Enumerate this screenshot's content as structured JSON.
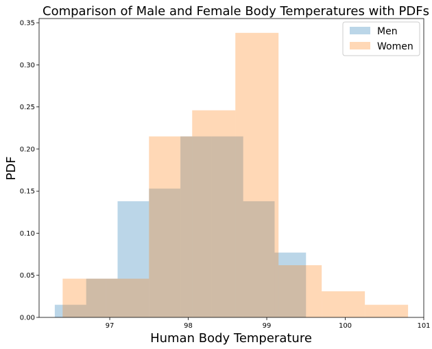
{
  "chart_data": {
    "type": "bar",
    "title": "Comparison of Male and Female Body Temperatures with PDFs",
    "xlabel": "Human Body Temperature",
    "ylabel": "PDF",
    "xlim": [
      96.1,
      101.0
    ],
    "ylim": [
      0,
      0.355
    ],
    "xticks": [
      "97",
      "98",
      "99",
      "100",
      "101"
    ],
    "yticks": [
      "0.00",
      "0.05",
      "0.10",
      "0.15",
      "0.20",
      "0.25",
      "0.30",
      "0.35"
    ],
    "legend_position": "top-right",
    "series": [
      {
        "name": "Men",
        "color": "#1f77b4",
        "opacity": 0.3,
        "bins": [
          {
            "x0": 96.3,
            "x1": 96.7,
            "value": 0.015
          },
          {
            "x0": 96.7,
            "x1": 97.1,
            "value": 0.046
          },
          {
            "x0": 97.1,
            "x1": 97.5,
            "value": 0.138
          },
          {
            "x0": 97.5,
            "x1": 97.9,
            "value": 0.153
          },
          {
            "x0": 97.9,
            "x1": 98.3,
            "value": 0.215
          },
          {
            "x0": 98.3,
            "x1": 98.7,
            "value": 0.215
          },
          {
            "x0": 98.7,
            "x1": 99.1,
            "value": 0.138
          },
          {
            "x0": 99.1,
            "x1": 99.5,
            "value": 0.077
          }
        ]
      },
      {
        "name": "Women",
        "color": "#ff7f0e",
        "opacity": 0.3,
        "bins": [
          {
            "x0": 96.4,
            "x1": 96.95,
            "value": 0.046
          },
          {
            "x0": 96.95,
            "x1": 97.5,
            "value": 0.046
          },
          {
            "x0": 97.5,
            "x1": 98.05,
            "value": 0.215
          },
          {
            "x0": 98.05,
            "x1": 98.6,
            "value": 0.246
          },
          {
            "x0": 98.6,
            "x1": 99.15,
            "value": 0.338
          },
          {
            "x0": 99.15,
            "x1": 99.7,
            "value": 0.062
          },
          {
            "x0": 99.7,
            "x1": 100.25,
            "value": 0.031
          },
          {
            "x0": 100.25,
            "x1": 100.8,
            "value": 0.015
          }
        ]
      }
    ]
  }
}
